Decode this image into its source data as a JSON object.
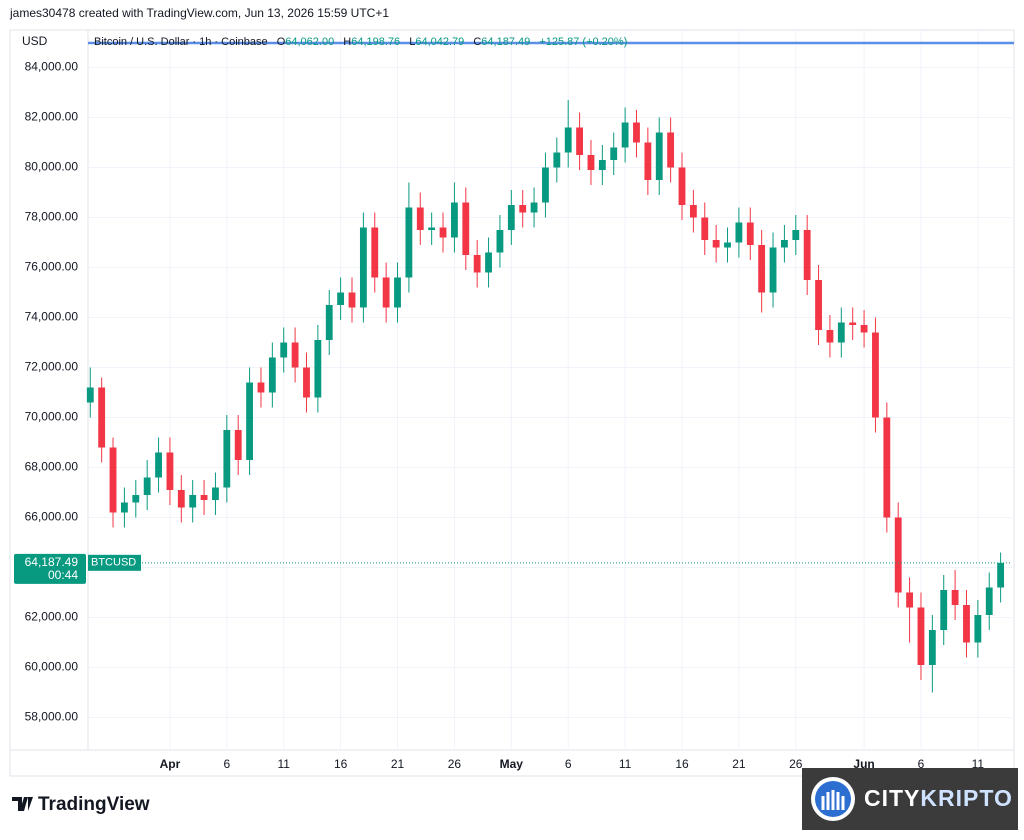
{
  "header": {
    "credit": "james30478 created with TradingView.com, Jun 13, 2026 15:59 UTC+1"
  },
  "legend": {
    "currency": "USD",
    "symbol": "Bitcoin / U.S. Dollar · 1h · Coinbase",
    "open_key": "O",
    "open": "64,062.00",
    "high_key": "H",
    "high": "64,198.76",
    "low_key": "L",
    "low": "64,042.79",
    "close_key": "C",
    "close": "64,187.49",
    "change": "+125.87 (+0.20%)"
  },
  "chart_data": {
    "type": "candlestick",
    "up_color": "#089981",
    "down_color": "#f23645",
    "grid": true,
    "xlim": [
      -7.2,
      74
    ],
    "ylim": [
      56700,
      85500
    ],
    "xticks": [
      {
        "value": 0,
        "label": "Apr"
      },
      {
        "value": 5,
        "label": "6"
      },
      {
        "value": 10,
        "label": "11"
      },
      {
        "value": 15,
        "label": "16"
      },
      {
        "value": 20,
        "label": "21"
      },
      {
        "value": 25,
        "label": "26"
      },
      {
        "value": 30,
        "label": "May"
      },
      {
        "value": 35,
        "label": "6"
      },
      {
        "value": 40,
        "label": "11"
      },
      {
        "value": 45,
        "label": "16"
      },
      {
        "value": 50,
        "label": "21"
      },
      {
        "value": 55,
        "label": "26"
      },
      {
        "value": 61,
        "label": "Jun"
      },
      {
        "value": 66,
        "label": "6"
      },
      {
        "value": 71,
        "label": "11"
      }
    ],
    "yticks": [
      {
        "value": 58000,
        "label": "58,000.00"
      },
      {
        "value": 60000,
        "label": "60,000.00"
      },
      {
        "value": 62000,
        "label": "62,000.00"
      },
      {
        "value": 64000,
        "label": "64,000.00"
      },
      {
        "value": 66000,
        "label": "66,000.00"
      },
      {
        "value": 68000,
        "label": "68,000.00"
      },
      {
        "value": 70000,
        "label": "70,000.00"
      },
      {
        "value": 72000,
        "label": "72,000.00"
      },
      {
        "value": 74000,
        "label": "74,000.00"
      },
      {
        "value": 76000,
        "label": "76,000.00"
      },
      {
        "value": 78000,
        "label": "78,000.00"
      },
      {
        "value": 80000,
        "label": "80,000.00"
      },
      {
        "value": 82000,
        "label": "82,000.00"
      },
      {
        "value": 84000,
        "label": "84,000.00"
      }
    ],
    "last_price": {
      "value": 64187.49,
      "label": "64,187.49",
      "symbol": "BTCUSD",
      "countdown": "00:44"
    },
    "x": [
      -7,
      -6,
      -5,
      -4,
      -3,
      -2,
      -1,
      0,
      1,
      2,
      3,
      4,
      5,
      6,
      7,
      8,
      9,
      10,
      11,
      12,
      13,
      14,
      15,
      16,
      17,
      18,
      19,
      20,
      21,
      22,
      23,
      24,
      25,
      26,
      27,
      28,
      29,
      30,
      31,
      32,
      33,
      34,
      35,
      36,
      37,
      38,
      39,
      40,
      41,
      42,
      43,
      44,
      45,
      46,
      47,
      48,
      49,
      50,
      51,
      52,
      53,
      54,
      55,
      56,
      57,
      58,
      59,
      60,
      61,
      62,
      63,
      64,
      65,
      66,
      67,
      68,
      69,
      70,
      71,
      72,
      73
    ],
    "open": [
      70600,
      71200,
      68800,
      66200,
      66600,
      66900,
      67600,
      68600,
      67100,
      66400,
      66900,
      66700,
      67200,
      69500,
      68300,
      71400,
      71000,
      72400,
      73000,
      72000,
      70800,
      73100,
      74500,
      75000,
      74400,
      77600,
      75600,
      74400,
      75600,
      78400,
      77500,
      77600,
      77200,
      78600,
      76500,
      75800,
      76600,
      77500,
      78500,
      78200,
      78600,
      80000,
      80600,
      81600,
      80500,
      79900,
      80300,
      80800,
      81800,
      81000,
      79500,
      81400,
      80000,
      78500,
      78000,
      77100,
      76800,
      77000,
      77800,
      76900,
      75000,
      76800,
      77100,
      77500,
      75500,
      73500,
      73000,
      73800,
      73700,
      73400,
      70000,
      66000,
      63000,
      62400,
      60100,
      61500,
      63100,
      62500,
      61000,
      62100,
      63200
    ],
    "high": [
      72000,
      71600,
      69200,
      67200,
      67500,
      68300,
      69200,
      69200,
      67700,
      67500,
      67500,
      67800,
      70100,
      70100,
      72000,
      72000,
      73000,
      73600,
      73600,
      72600,
      73700,
      75100,
      75600,
      75600,
      78200,
      78200,
      76200,
      76200,
      79400,
      79000,
      78200,
      78200,
      79400,
      79200,
      77100,
      77200,
      78100,
      79100,
      79100,
      79200,
      80600,
      81200,
      82700,
      82200,
      81100,
      80900,
      81400,
      82400,
      82300,
      81600,
      82000,
      82000,
      80600,
      79100,
      78600,
      77700,
      77600,
      78400,
      78400,
      77500,
      77400,
      77700,
      78100,
      78100,
      76100,
      74100,
      74400,
      74400,
      74300,
      74000,
      70600,
      66600,
      63600,
      63000,
      62100,
      63700,
      63900,
      63100,
      62700,
      63800,
      64600
    ],
    "low": [
      70000,
      68200,
      65600,
      65600,
      66000,
      66300,
      67000,
      66500,
      65800,
      65800,
      66100,
      66100,
      66600,
      67700,
      67700,
      70400,
      70400,
      71800,
      71400,
      70200,
      70200,
      72500,
      73900,
      73800,
      73800,
      75000,
      73800,
      73800,
      75000,
      76900,
      76900,
      76600,
      76600,
      75900,
      75200,
      75200,
      76000,
      76900,
      77600,
      77600,
      78000,
      79400,
      80000,
      79900,
      79300,
      79300,
      79700,
      80200,
      80400,
      78900,
      78900,
      79400,
      77900,
      77400,
      76500,
      76200,
      76200,
      76400,
      76300,
      74200,
      74400,
      76200,
      76500,
      74900,
      72900,
      72400,
      72400,
      73100,
      72800,
      69400,
      65400,
      62400,
      61000,
      59500,
      59000,
      60900,
      61900,
      60400,
      60400,
      61500,
      62600
    ],
    "close": [
      71200,
      68800,
      66200,
      66600,
      66900,
      67600,
      68600,
      67100,
      66400,
      66900,
      66700,
      67200,
      69500,
      68300,
      71400,
      71000,
      72400,
      73000,
      72000,
      70800,
      73100,
      74500,
      75000,
      74400,
      77600,
      75600,
      74400,
      75600,
      78400,
      77500,
      77600,
      77200,
      78600,
      76500,
      75800,
      76600,
      77500,
      78500,
      78200,
      78600,
      80000,
      80600,
      81600,
      80500,
      79900,
      80300,
      80800,
      81800,
      81000,
      79500,
      81400,
      80000,
      78500,
      78000,
      77100,
      76800,
      77000,
      77800,
      76900,
      75000,
      76800,
      77100,
      77500,
      75500,
      73500,
      73000,
      73800,
      73700,
      73400,
      70000,
      66000,
      63000,
      62400,
      60100,
      61500,
      63100,
      62500,
      61000,
      62100,
      63200,
      64187.49
    ]
  },
  "footer": {
    "brand": "TradingView",
    "watermark_a": "CITY",
    "watermark_b": "KRIPTO"
  }
}
